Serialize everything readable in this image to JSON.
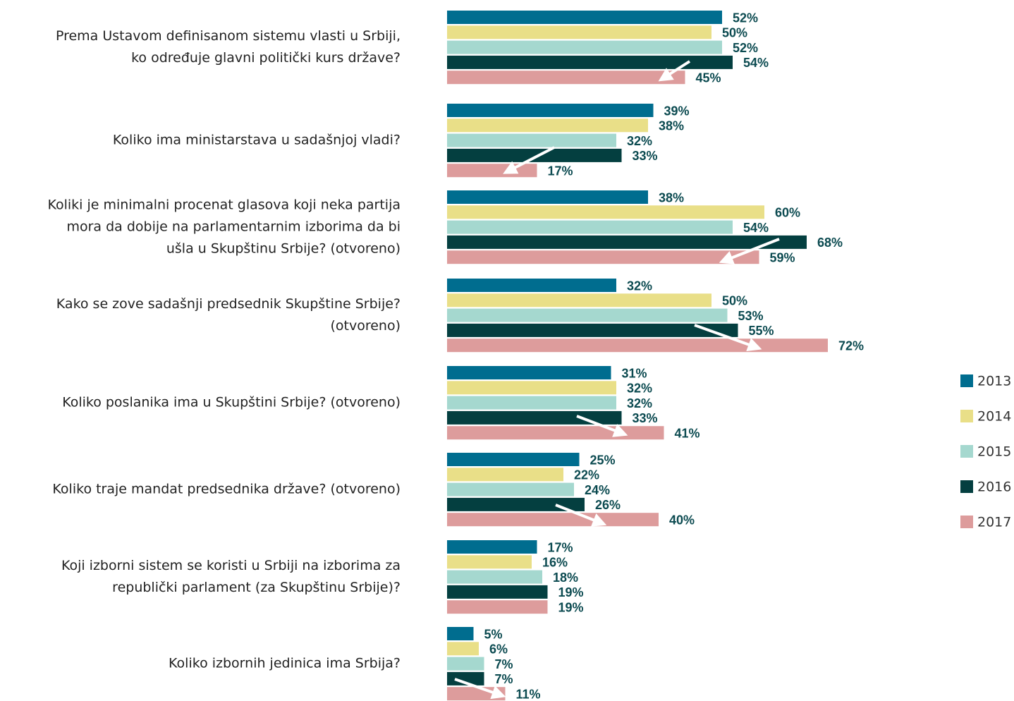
{
  "chart_data": {
    "type": "hbar",
    "categories": [
      "Prema Ustavom definisanom sistemu vlasti u Srbiji,\nko određuje glavni politički kurs države?",
      "Koliko ima ministarstava u sadašnjoj vladi?",
      "Koliki je minimalni procenat glasova koji neka partija\nmora da dobije na parlamentarnim izborima da bi\nušla u Skupštinu Srbije? (otvoreno)",
      "Kako se zove sadašnji predsednik Skupštine Srbije?\n(otvoreno)",
      "Koliko poslanika ima u Skupštini Srbije? (otvoreno)",
      "Koliko traje mandat predsednika države? (otvoreno)",
      "Koji izborni sistem se koristi u Srbiji na izborima za\nrepublički parlament (za Skupštinu Srbije)?",
      "Koliko izbornih jedinica ima Srbija?"
    ],
    "series": [
      {
        "name": "2013",
        "color": "#006d8f",
        "values": [
          52,
          39,
          38,
          32,
          31,
          25,
          17,
          5
        ],
        "value_labels": [
          "52%",
          "39%",
          "38%",
          "32%",
          "31%",
          "25%",
          "17%",
          "5%"
        ]
      },
      {
        "name": "2014",
        "color": "#e9df88",
        "values": [
          50,
          38,
          60,
          50,
          32,
          22,
          16,
          6
        ],
        "value_labels": [
          "50%",
          "38%",
          "60%",
          "50%",
          "32%",
          "22%",
          "16%",
          "6%"
        ]
      },
      {
        "name": "2015",
        "color": "#a5d8cf",
        "values": [
          52,
          32,
          54,
          53,
          32,
          24,
          18,
          7
        ],
        "value_labels": [
          "52%",
          "32%",
          "54%",
          "53%",
          "32%",
          "24%",
          "18%",
          "7%"
        ]
      },
      {
        "name": "2016",
        "color": "#043f40",
        "values": [
          54,
          33,
          68,
          55,
          33,
          26,
          19,
          7
        ],
        "value_labels": [
          "54%",
          "33%",
          "68%",
          "55%",
          "33%",
          "26%",
          "19%",
          "7%"
        ]
      },
      {
        "name": "2017",
        "color": "#dd9c9c",
        "values": [
          45,
          17,
          59,
          72,
          41,
          40,
          19,
          11
        ],
        "value_labels": [
          "45%",
          "17%",
          "59%",
          "72%",
          "41%",
          "40%",
          "19%",
          "11%"
        ]
      }
    ],
    "legend": "right"
  }
}
